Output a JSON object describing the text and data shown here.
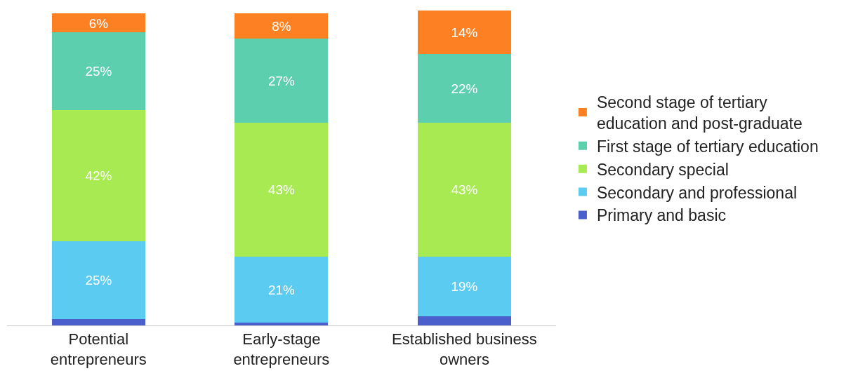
{
  "chart_data": {
    "type": "bar",
    "stacked": true,
    "legend": "right",
    "categories": [
      "Potential entrepreneurs",
      "Early-stage entrepreneurs",
      "Established business owners"
    ],
    "series": [
      {
        "name": "Primary and basic",
        "color": "#4a5fcc",
        "values": [
          2,
          1,
          3
        ],
        "value_labels": [
          null,
          null,
          null
        ]
      },
      {
        "name": "Secondary and professional",
        "color": "#5ccbf2",
        "values": [
          25,
          21,
          19
        ],
        "value_labels": [
          "25%",
          "21%",
          "19%"
        ]
      },
      {
        "name": "Secondary special",
        "color": "#a8ea52",
        "values": [
          42,
          43,
          43
        ],
        "value_labels": [
          "42%",
          "43%",
          "43%"
        ]
      },
      {
        "name": "First stage of tertiary education",
        "color": "#5bcfae",
        "values": [
          25,
          27,
          22
        ],
        "value_labels": [
          "25%",
          "27%",
          "22%"
        ]
      },
      {
        "name": "Second stage of tertiary education and post-graduate",
        "color": "#fd8022",
        "values": [
          6,
          8,
          14
        ],
        "value_labels": [
          "6%",
          "8%",
          "14%"
        ]
      }
    ]
  }
}
